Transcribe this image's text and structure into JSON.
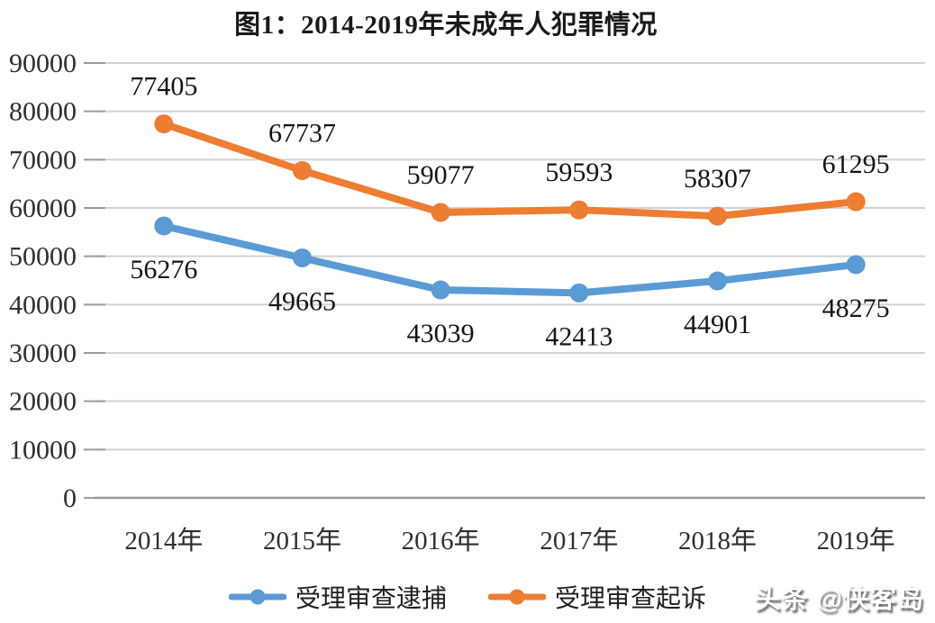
{
  "title": "图1：2014-2019年未成年人犯罪情况",
  "watermark": {
    "text": "头条 @侠客岛"
  },
  "colors": {
    "series_blue": "#5B9BD5",
    "series_orange": "#ED7D31",
    "gridline": "#d2d2d2",
    "axis_line": "#9b9b9b",
    "label_text": "#141414"
  },
  "chart_data": {
    "type": "line",
    "title": "图1：2014-2019年未成年人犯罪情况",
    "categories": [
      "2014年",
      "2015年",
      "2016年",
      "2017年",
      "2018年",
      "2019年"
    ],
    "series": [
      {
        "id": "shouli-shencha-daibu",
        "name": "受理审查逮捕",
        "color": "#5B9BD5",
        "values": [
          56276,
          49665,
          43039,
          42413,
          44901,
          48275
        ],
        "label_position": "below"
      },
      {
        "id": "shouli-shencha-qisu",
        "name": "受理审查起诉",
        "color": "#ED7D31",
        "values": [
          77405,
          67737,
          59077,
          59593,
          58307,
          61295
        ],
        "label_position": "above"
      }
    ],
    "xlabel": "",
    "ylabel": "",
    "ylim": [
      0,
      90000
    ],
    "yticks": [
      0,
      10000,
      20000,
      30000,
      40000,
      50000,
      60000,
      70000,
      80000,
      90000
    ],
    "grid": "horizontal-only",
    "legend_position": "bottom",
    "marker": "circle",
    "data_labels": "shown"
  }
}
